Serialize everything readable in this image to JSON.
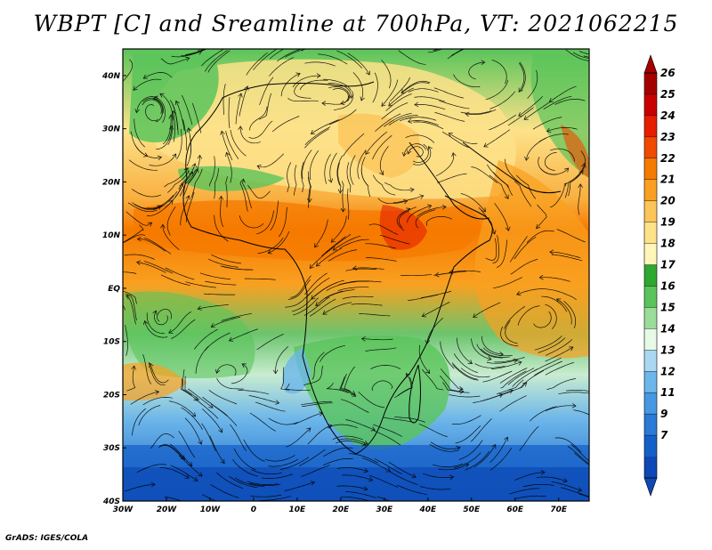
{
  "title": "WBPT [C] and Sreamline at 700hPa, VT: 2021062215",
  "credit": "GrADS: IGES/COLA",
  "map": {
    "lat_labels": [
      "40N",
      "30N",
      "20N",
      "10N",
      "EQ",
      "10S",
      "20S",
      "30S",
      "40S"
    ],
    "lat_values": [
      40,
      30,
      20,
      10,
      0,
      -10,
      -20,
      -30,
      -40
    ],
    "lon_labels": [
      "30W",
      "20W",
      "10W",
      "0",
      "10E",
      "20E",
      "30E",
      "40E",
      "50E",
      "60E",
      "70E"
    ],
    "lon_values": [
      -30,
      -20,
      -10,
      0,
      10,
      20,
      30,
      40,
      50,
      60,
      70
    ],
    "lat_range": [
      -40,
      45
    ],
    "lon_range": [
      -30,
      77
    ]
  },
  "colorbar": {
    "labels": [
      "26",
      "25",
      "24",
      "23",
      "22",
      "21",
      "20",
      "19",
      "18",
      "17",
      "16",
      "15",
      "14",
      "13",
      "12",
      "11",
      "9",
      "7"
    ],
    "colors": [
      "#a50000",
      "#c80000",
      "#e61e00",
      "#f04a00",
      "#f57a00",
      "#f9a020",
      "#fbc55a",
      "#fde28a",
      "#fff6b8",
      "#2fa82f",
      "#5ac45a",
      "#9adc9a",
      "#e6fae6",
      "#aad8f2",
      "#6cb6ea",
      "#4698e2",
      "#2a7ad6",
      "#1560c8",
      "#0d48b4"
    ]
  }
}
